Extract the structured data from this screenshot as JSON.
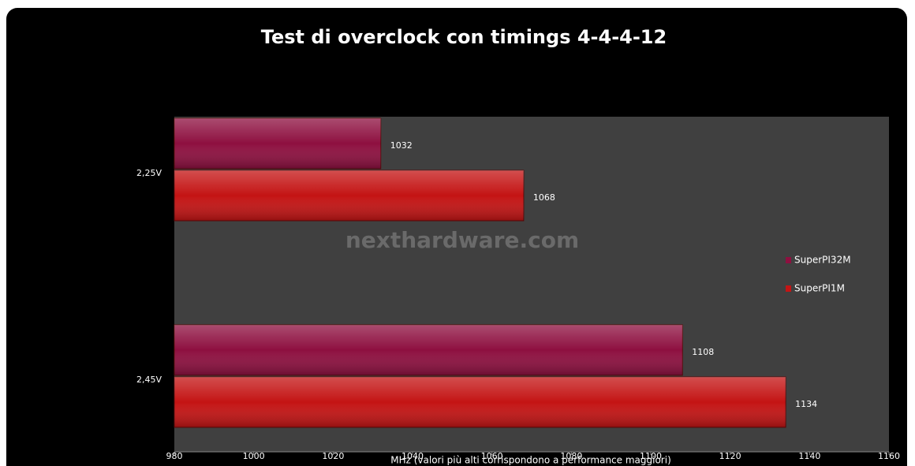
{
  "chart_data": {
    "type": "hbar",
    "title": "Test di overclock con timings 4-4-4-12",
    "categories": [
      "2,25V",
      "2,45V"
    ],
    "series": [
      {
        "name": "SuperPI32M",
        "color": "#8e1040",
        "values": [
          1032,
          1108
        ]
      },
      {
        "name": "SuperPI1M",
        "color": "#c41414",
        "values": [
          1068,
          1134
        ]
      }
    ],
    "xlim": [
      980,
      1160
    ],
    "xticks": [
      980,
      1000,
      1020,
      1040,
      1060,
      1080,
      1100,
      1120,
      1140,
      1160
    ],
    "xlabel": "MHz (valori più alti corrispondono a performance maggiori)",
    "watermark": "nexthardware.com",
    "legend": "right"
  }
}
